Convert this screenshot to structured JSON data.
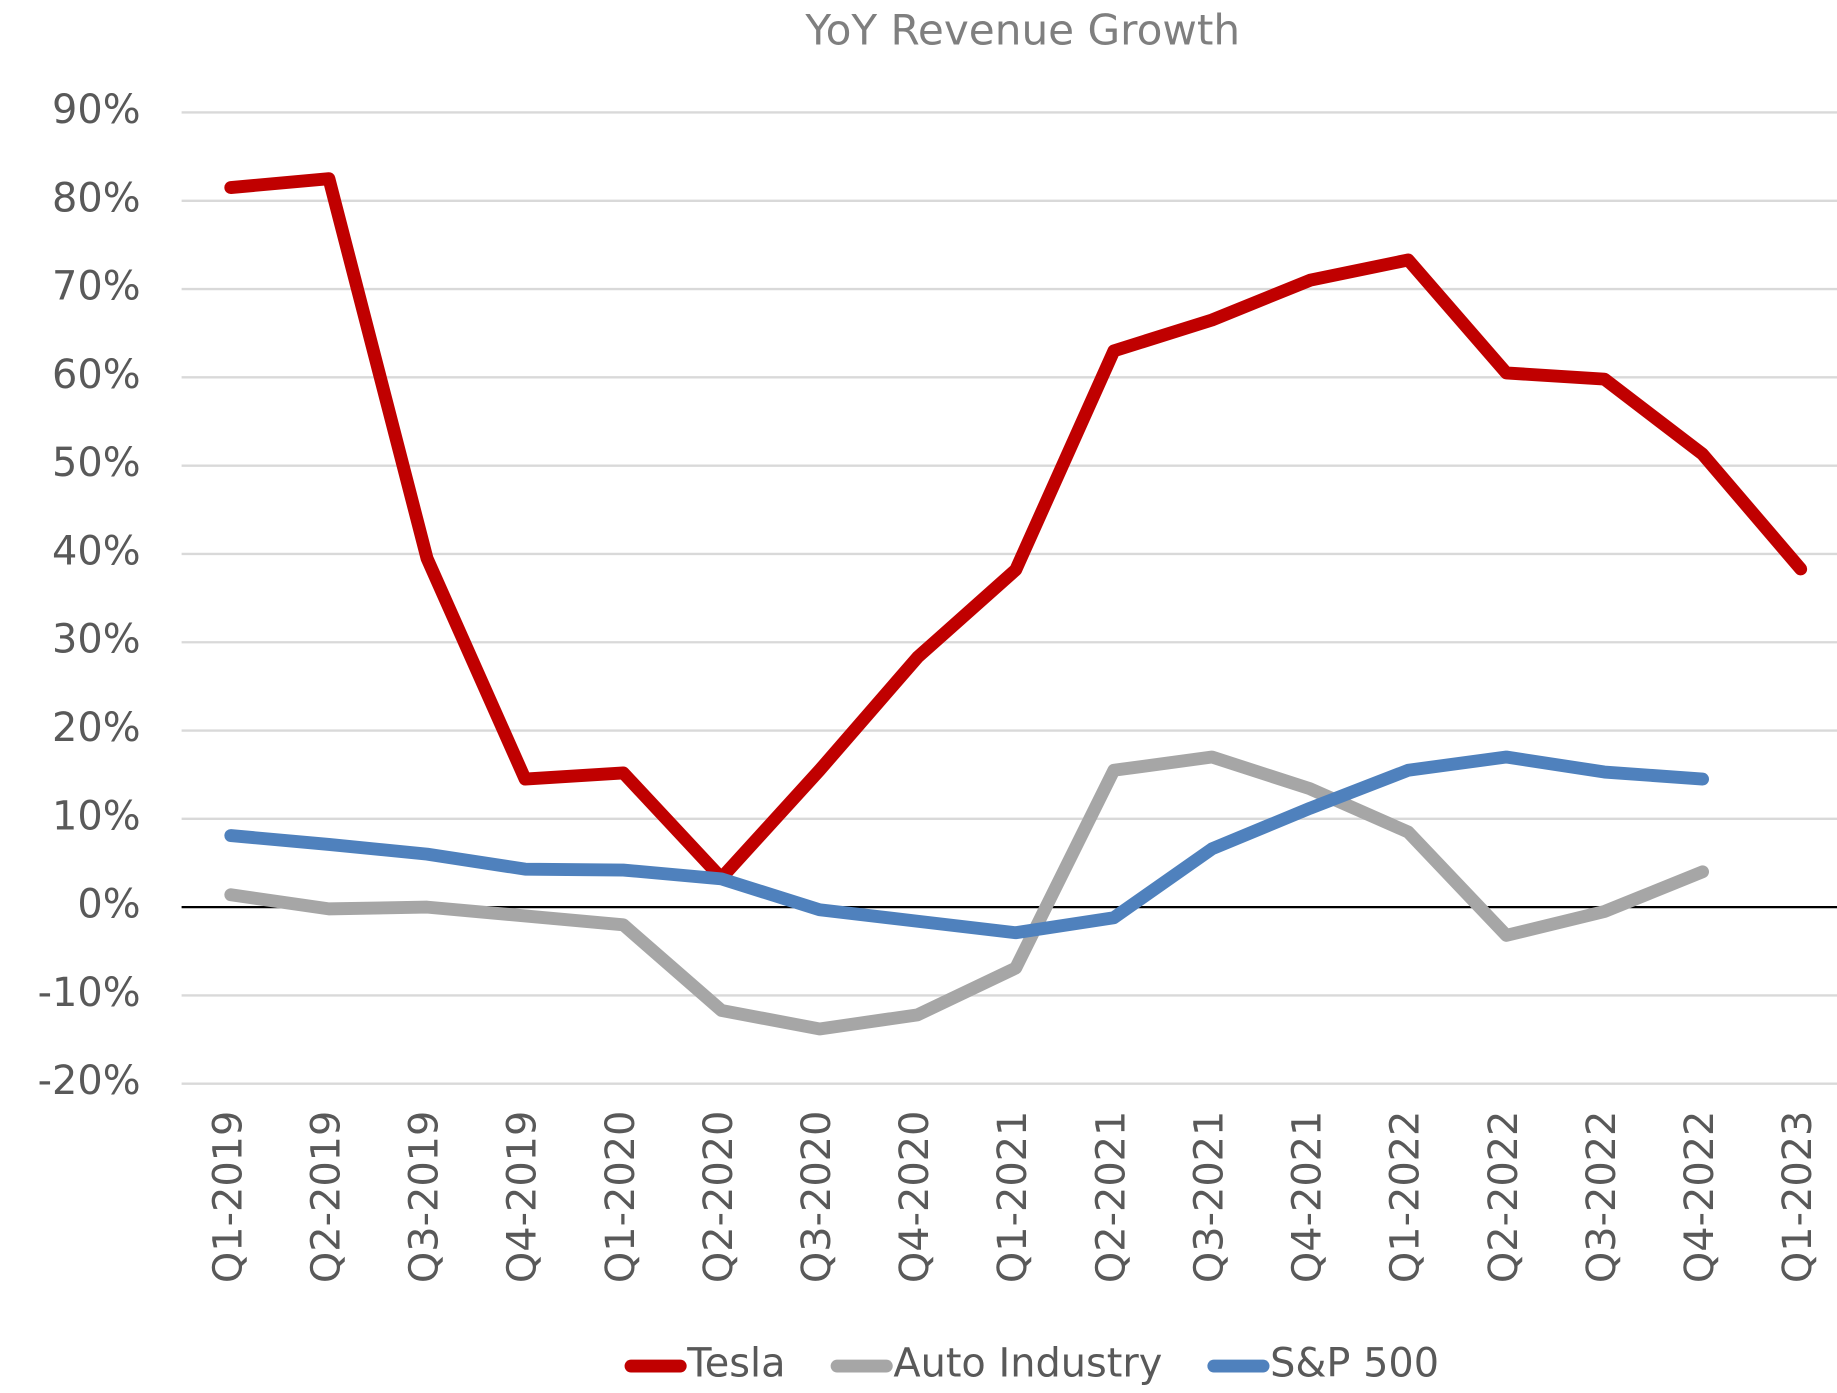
{
  "chart_data": {
    "type": "line",
    "title": "YoY Revenue Growth",
    "categories": [
      "Q1-2019",
      "Q2-2019",
      "Q3-2019",
      "Q4-2019",
      "Q1-2020",
      "Q2-2020",
      "Q3-2020",
      "Q4-2020",
      "Q1-2021",
      "Q2-2021",
      "Q3-2021",
      "Q4-2021",
      "Q1-2022",
      "Q2-2022",
      "Q3-2022",
      "Q4-2022",
      "Q1-2023"
    ],
    "series": [
      {
        "name": "Tesla",
        "color": "#c00000",
        "values": [
          81.5,
          82.5,
          39.5,
          14.5,
          15.2,
          3.3,
          15.5,
          28.3,
          38.2,
          63,
          66.5,
          71,
          73.3,
          60.5,
          59.8,
          51.3,
          38.3
        ]
      },
      {
        "name": "Auto Industry",
        "color": "#a6a6a6",
        "values": [
          1.4,
          -0.2,
          0,
          -1,
          -2,
          -11.7,
          -13.8,
          -12.2,
          -6.9,
          15.5,
          17,
          13.4,
          8.5,
          -3.2,
          -0.5,
          4,
          null
        ]
      },
      {
        "name": "S&P 500",
        "color": "#4f81bd",
        "values": [
          8.1,
          7.1,
          6,
          4.3,
          4.2,
          3.2,
          -0.3,
          -1.6,
          -2.9,
          -1.2,
          6.6,
          11.2,
          15.5,
          17,
          15.3,
          14.5,
          null
        ]
      }
    ],
    "ylim": [
      -20,
      90
    ],
    "yticks": [
      {
        "value": -20,
        "label": "-20%"
      },
      {
        "value": -10,
        "label": "-10%"
      },
      {
        "value": 0,
        "label": "0%"
      },
      {
        "value": 10,
        "label": "10%"
      },
      {
        "value": 20,
        "label": "20%"
      },
      {
        "value": 30,
        "label": "30%"
      },
      {
        "value": 40,
        "label": "40%"
      },
      {
        "value": 50,
        "label": "50%"
      },
      {
        "value": 60,
        "label": "60%"
      },
      {
        "value": 70,
        "label": "70%"
      },
      {
        "value": 80,
        "label": "80%"
      },
      {
        "value": 90,
        "label": "90%"
      }
    ],
    "grid": true,
    "legend": "bottom"
  }
}
